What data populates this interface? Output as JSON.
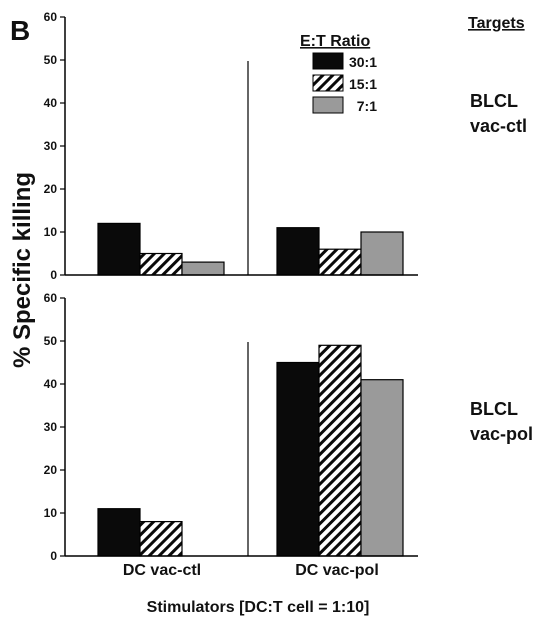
{
  "panel_letter": "B",
  "targets_header": "Targets",
  "ylabel": "% Specific killing",
  "xlabel": "Stimulators  [DC:T cell = 1:10]",
  "legend": {
    "title": "E:T Ratio",
    "items": [
      "30:1",
      "15:1",
      "7:1"
    ]
  },
  "colors": {
    "30:1": "#0a0a0a",
    "15:1": "hatch",
    "7:1": "#9a9a9a"
  },
  "chart_data": [
    {
      "type": "bar",
      "target": [
        "BLCL",
        "vac-ctl"
      ],
      "categories": [
        "DC vac-ctl",
        "DC vac-pol"
      ],
      "ylim": [
        0,
        60
      ],
      "yticks": [
        "0",
        "10",
        "20",
        "30",
        "40",
        "50",
        "60"
      ],
      "series": [
        {
          "name": "30:1",
          "values": [
            12,
            11
          ]
        },
        {
          "name": "15:1",
          "values": [
            5,
            6
          ]
        },
        {
          "name": "7:1",
          "values": [
            3,
            10
          ]
        }
      ]
    },
    {
      "type": "bar",
      "target": [
        "BLCL",
        "vac-pol"
      ],
      "categories": [
        "DC vac-ctl",
        "DC vac-pol"
      ],
      "ylim": [
        0,
        60
      ],
      "yticks": [
        "0",
        "10",
        "20",
        "30",
        "40",
        "50",
        "60"
      ],
      "series": [
        {
          "name": "30:1",
          "values": [
            11,
            45
          ]
        },
        {
          "name": "15:1",
          "values": [
            8,
            49
          ]
        },
        {
          "name": "7:1",
          "values": [
            0,
            41
          ]
        }
      ]
    }
  ]
}
